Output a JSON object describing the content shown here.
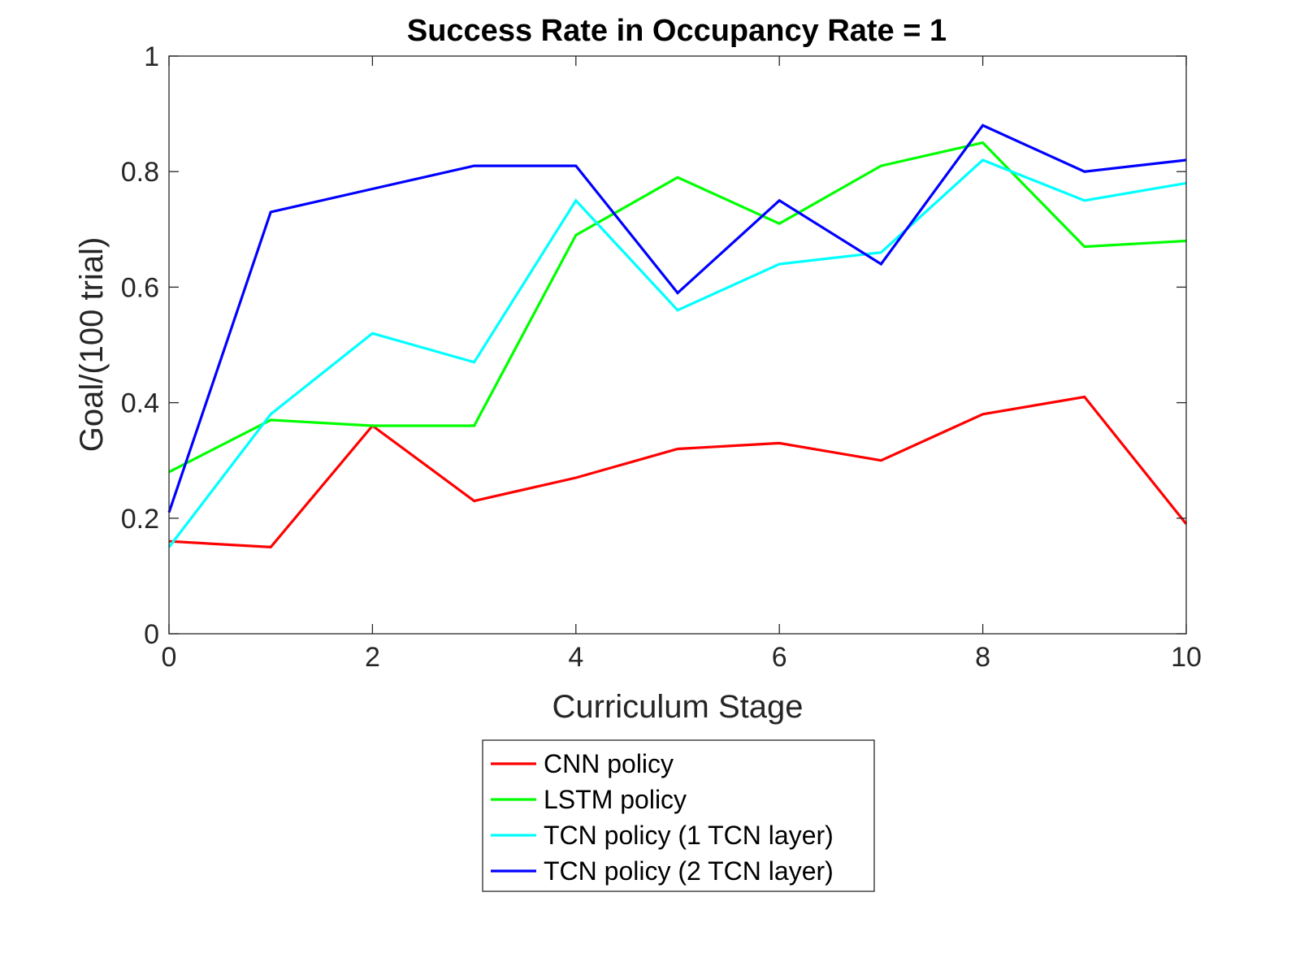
{
  "chart_data": {
    "type": "line",
    "title": "Success Rate in Occupancy Rate = 1",
    "xlabel": "Curriculum Stage",
    "ylabel": "Goal/(100 trial)",
    "xlim": [
      0,
      10
    ],
    "ylim": [
      0,
      1
    ],
    "xticks": [
      "0",
      "2",
      "4",
      "6",
      "8",
      "10"
    ],
    "yticks": [
      "0",
      "0.2",
      "0.4",
      "0.6",
      "0.8",
      "1"
    ],
    "grid": false,
    "legend_position": "bottom-outside",
    "x": [
      0,
      1,
      2,
      3,
      4,
      5,
      6,
      7,
      8,
      9,
      10
    ],
    "series": [
      {
        "name": "CNN policy",
        "color": "#ff0000",
        "values": [
          0.16,
          0.15,
          0.36,
          0.23,
          0.27,
          0.32,
          0.33,
          0.3,
          0.38,
          0.41,
          0.19
        ]
      },
      {
        "name": "LSTM policy",
        "color": "#00ff00",
        "values": [
          0.28,
          0.37,
          0.36,
          0.36,
          0.69,
          0.79,
          0.71,
          0.81,
          0.85,
          0.67,
          0.68
        ]
      },
      {
        "name": "TCN policy (1 TCN layer)",
        "color": "#00ffff",
        "values": [
          0.15,
          0.38,
          0.52,
          0.47,
          0.75,
          0.56,
          0.64,
          0.66,
          0.82,
          0.75,
          0.78
        ]
      },
      {
        "name": "TCN policy (2 TCN layer)",
        "color": "#0000ff",
        "values": [
          0.21,
          0.73,
          0.77,
          0.81,
          0.81,
          0.59,
          0.75,
          0.64,
          0.88,
          0.8,
          0.82
        ]
      }
    ]
  }
}
